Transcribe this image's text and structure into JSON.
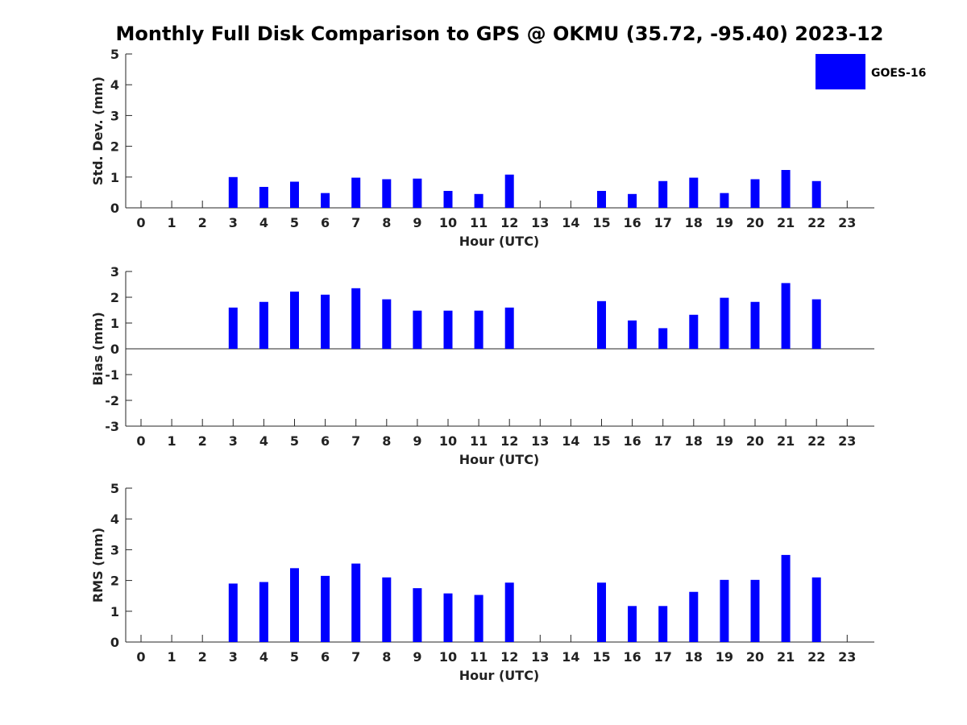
{
  "title": "Monthly Full Disk Comparison to GPS @ OKMU (35.72, -95.40) 2023-12",
  "legend": {
    "label": "GOES-16",
    "color": "#0000ff",
    "placement": "top-right"
  },
  "chart_data": [
    {
      "type": "bar",
      "ylabel": "Std. Dev. (mm)",
      "xlabel": "Hour (UTC)",
      "ylim": [
        0,
        5
      ],
      "yticks": [
        "0",
        "1",
        "2",
        "3",
        "4",
        "5"
      ],
      "categories": [
        "0",
        "1",
        "2",
        "3",
        "4",
        "5",
        "6",
        "7",
        "8",
        "9",
        "10",
        "11",
        "12",
        "13",
        "14",
        "15",
        "16",
        "17",
        "18",
        "19",
        "20",
        "21",
        "22",
        "23"
      ],
      "series": [
        {
          "name": "GOES-16",
          "color": "#0000ff",
          "values": [
            null,
            null,
            null,
            1.0,
            0.68,
            0.85,
            0.48,
            0.98,
            0.93,
            0.95,
            0.55,
            0.45,
            1.08,
            null,
            null,
            0.55,
            0.45,
            0.87,
            0.98,
            0.48,
            0.93,
            1.23,
            0.87,
            null
          ]
        }
      ]
    },
    {
      "type": "bar",
      "ylabel": "Bias (mm)",
      "xlabel": "Hour (UTC)",
      "ylim": [
        -3,
        3
      ],
      "yticks": [
        "-3",
        "-2",
        "-1",
        "0",
        "1",
        "2",
        "3"
      ],
      "zero_line": true,
      "categories": [
        "0",
        "1",
        "2",
        "3",
        "4",
        "5",
        "6",
        "7",
        "8",
        "9",
        "10",
        "11",
        "12",
        "13",
        "14",
        "15",
        "16",
        "17",
        "18",
        "19",
        "20",
        "21",
        "22",
        "23"
      ],
      "series": [
        {
          "name": "GOES-16",
          "color": "#0000ff",
          "values": [
            null,
            null,
            null,
            1.6,
            1.82,
            2.22,
            2.1,
            2.35,
            1.92,
            1.48,
            1.48,
            1.48,
            1.6,
            null,
            null,
            1.85,
            1.1,
            0.8,
            1.32,
            1.98,
            1.82,
            2.55,
            1.92,
            null
          ]
        }
      ]
    },
    {
      "type": "bar",
      "ylabel": "RMS (mm)",
      "xlabel": "Hour (UTC)",
      "ylim": [
        0,
        5
      ],
      "yticks": [
        "0",
        "1",
        "2",
        "3",
        "4",
        "5"
      ],
      "categories": [
        "0",
        "1",
        "2",
        "3",
        "4",
        "5",
        "6",
        "7",
        "8",
        "9",
        "10",
        "11",
        "12",
        "13",
        "14",
        "15",
        "16",
        "17",
        "18",
        "19",
        "20",
        "21",
        "22",
        "23"
      ],
      "series": [
        {
          "name": "GOES-16",
          "color": "#0000ff",
          "values": [
            null,
            null,
            null,
            1.9,
            1.95,
            2.4,
            2.15,
            2.55,
            2.1,
            1.75,
            1.58,
            1.53,
            1.93,
            null,
            null,
            1.93,
            1.17,
            1.17,
            1.63,
            2.02,
            2.02,
            2.83,
            2.1,
            null
          ]
        }
      ]
    }
  ]
}
